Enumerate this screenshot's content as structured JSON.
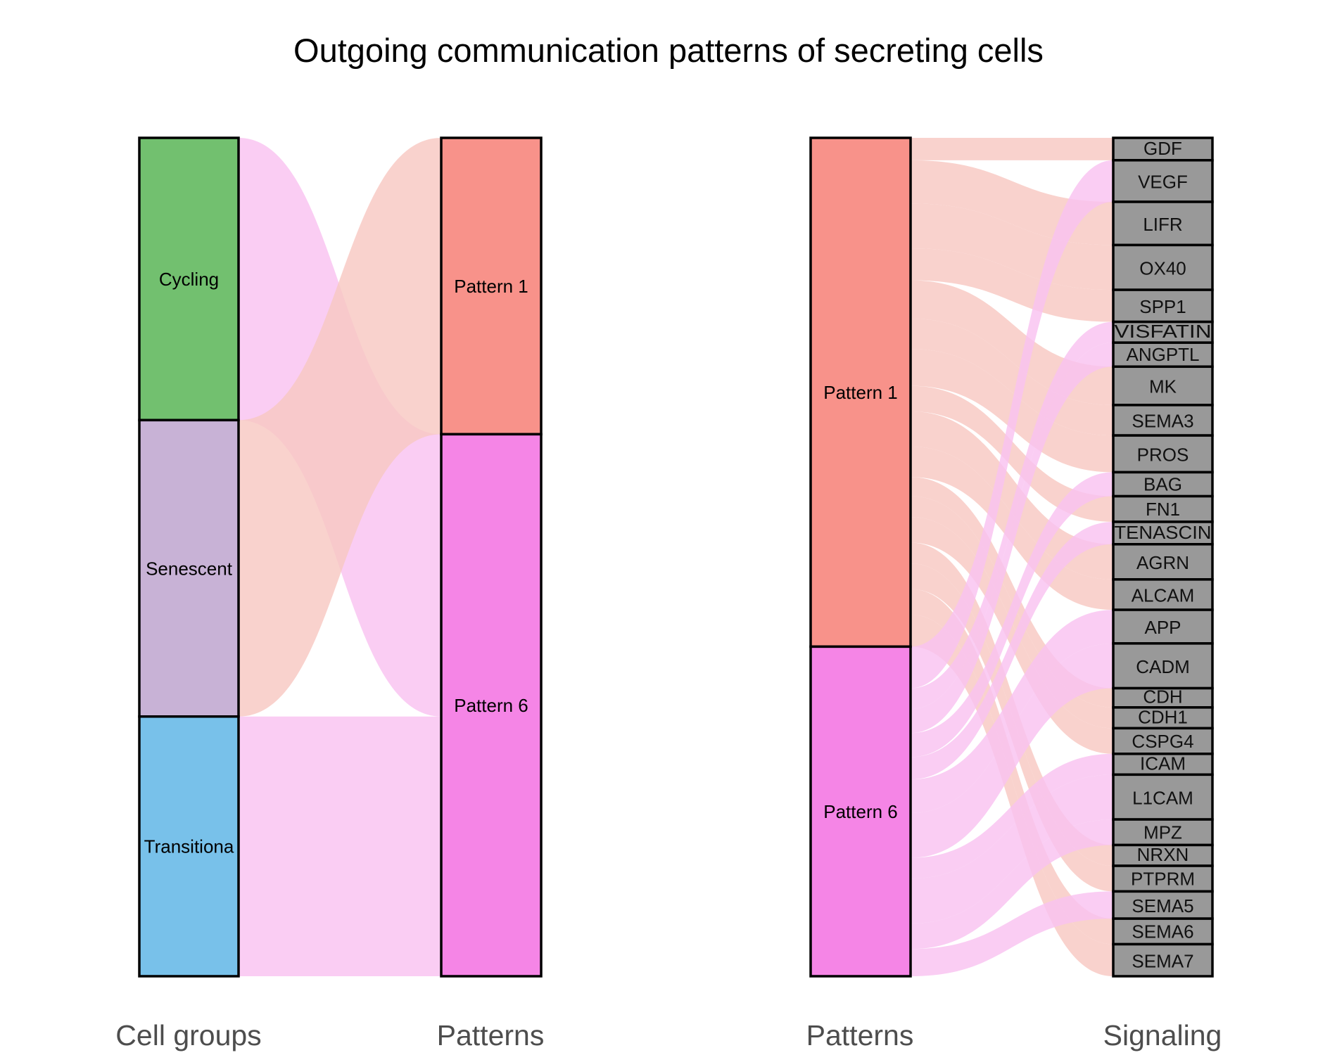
{
  "title": "Outgoing communication patterns of secreting cells",
  "axes": {
    "cell_groups": "Cell groups",
    "patterns_left": "Patterns",
    "patterns_right": "Patterns",
    "signaling": "Signaling"
  },
  "colors": {
    "cycling": "#72c06f",
    "senescent": "#c8b2d6",
    "transitional": "#78c1ea",
    "pattern1": "#f8928a",
    "pattern6": "#f585e6",
    "signaling_node": "#999999",
    "flow_pattern1": "#f8c8c2",
    "flow_pattern6": "#f9c2f0"
  },
  "cell_groups": [
    {
      "id": "cycling",
      "label": "Cycling",
      "weight": 1.0
    },
    {
      "id": "senescent",
      "label": "Senescent",
      "weight": 1.05
    },
    {
      "id": "transitional",
      "label": "Transitiona",
      "weight": 0.92
    }
  ],
  "patterns": [
    {
      "id": "pattern1",
      "label": "Pattern 1"
    },
    {
      "id": "pattern6",
      "label": "Pattern 6"
    }
  ],
  "cell_flows": [
    {
      "source": "cycling",
      "target": "pattern6",
      "weight": 1.0
    },
    {
      "source": "senescent",
      "target": "pattern1",
      "weight": 1.05
    },
    {
      "source": "transitional",
      "target": "pattern6",
      "weight": 0.92
    }
  ],
  "signaling": [
    {
      "label": "GDF",
      "pattern": "pattern1",
      "weight": 0.7
    },
    {
      "label": "VEGF",
      "pattern": "pattern6",
      "weight": 1.3
    },
    {
      "label": "LIFR",
      "pattern": "pattern1",
      "weight": 1.35
    },
    {
      "label": "OX40",
      "pattern": "pattern1",
      "weight": 1.4
    },
    {
      "label": "SPP1",
      "pattern": "pattern1",
      "weight": 1.0
    },
    {
      "label": "VISFATIN",
      "pattern": "pattern6",
      "weight": 0.65
    },
    {
      "label": "ANGPTL",
      "pattern": "pattern6",
      "weight": 0.75
    },
    {
      "label": "MK",
      "pattern": "pattern1",
      "weight": 1.2
    },
    {
      "label": "SEMA3",
      "pattern": "pattern1",
      "weight": 0.95
    },
    {
      "label": "PROS",
      "pattern": "pattern1",
      "weight": 1.15
    },
    {
      "label": "BAG",
      "pattern": "pattern6",
      "weight": 0.75
    },
    {
      "label": "FN1",
      "pattern": "pattern1",
      "weight": 0.8
    },
    {
      "label": "TENASCIN",
      "pattern": "pattern6",
      "weight": 0.7
    },
    {
      "label": "AGRN",
      "pattern": "pattern1",
      "weight": 1.1
    },
    {
      "label": "ALCAM",
      "pattern": "pattern1",
      "weight": 0.95
    },
    {
      "label": "APP",
      "pattern": "pattern6",
      "weight": 1.05
    },
    {
      "label": "CADM",
      "pattern": "pattern6",
      "weight": 1.4
    },
    {
      "label": "CDH",
      "pattern": "pattern1",
      "weight": 0.6
    },
    {
      "label": "CDH1",
      "pattern": "pattern1",
      "weight": 0.65
    },
    {
      "label": "CSPG4",
      "pattern": "pattern1",
      "weight": 0.8
    },
    {
      "label": "ICAM",
      "pattern": "pattern6",
      "weight": 0.65
    },
    {
      "label": "L1CAM",
      "pattern": "pattern6",
      "weight": 1.4
    },
    {
      "label": "MPZ",
      "pattern": "pattern6",
      "weight": 0.8
    },
    {
      "label": "NRXN",
      "pattern": "pattern1",
      "weight": 0.65
    },
    {
      "label": "PTPRM",
      "pattern": "pattern1",
      "weight": 0.8
    },
    {
      "label": "SEMA5",
      "pattern": "pattern6",
      "weight": 0.85
    },
    {
      "label": "SEMA6",
      "pattern": "pattern1",
      "weight": 0.8
    },
    {
      "label": "SEMA7",
      "pattern": "pattern1",
      "weight": 1.0
    }
  ]
}
